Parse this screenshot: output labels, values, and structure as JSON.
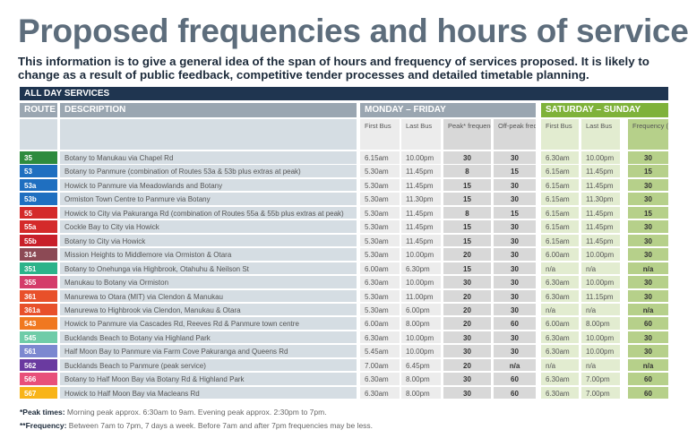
{
  "title": "Proposed frequencies and hours of service",
  "intro": "This information is to give a general idea of the span of hours and frequency of services proposed. It is likely to change as a result of public feedback, competitive tender processes and detailed timetable planning.",
  "section": "ALL DAY SERVICES",
  "headers": {
    "route": "ROUTE",
    "description": "DESCRIPTION",
    "weekday": "MONDAY – FRIDAY",
    "weekend": "SATURDAY – SUNDAY",
    "first_bus": "First Bus",
    "last_bus": "Last Bus",
    "peak": "Peak* frequency ** (minutes)",
    "offpeak": "Off-peak frequency (minutes)",
    "we_first": "First Bus",
    "we_last": "Last Bus",
    "we_freq": "Frequency (minutes)"
  },
  "colors": {
    "navy": "#1f3550",
    "grey_header": "#9aa6b1",
    "green_header": "#7fb23a"
  },
  "rows": [
    [
      "35",
      "Botany to Manukau via Chapel Rd",
      "6.15am",
      "10.00pm",
      "30",
      "30",
      "6.30am",
      "10.00pm",
      "30",
      "#2e8b3e"
    ],
    [
      "53",
      "Botany to Panmure (combination of Routes 53a & 53b plus extras at peak)",
      "5.30am",
      "11.45pm",
      "8",
      "15",
      "6.15am",
      "11.45pm",
      "15",
      "#1f6fc0"
    ],
    [
      "53a",
      "Howick to Panmure via Meadowlands and Botany",
      "5.30am",
      "11.45pm",
      "15",
      "30",
      "6.15am",
      "11.45pm",
      "30",
      "#1f6fc0"
    ],
    [
      "53b",
      "Ormiston Town Centre to Panmure via Botany",
      "5.30am",
      "11.30pm",
      "15",
      "30",
      "6.15am",
      "11.30pm",
      "30",
      "#1f6fc0"
    ],
    [
      "55",
      "Howick to City via Pakuranga Rd (combination of Routes 55a & 55b plus extras at peak)",
      "5.30am",
      "11.45pm",
      "8",
      "15",
      "6.15am",
      "11.45pm",
      "15",
      "#d42a2a"
    ],
    [
      "55a",
      "Cockle Bay to City via Howick",
      "5.30am",
      "11.45pm",
      "15",
      "30",
      "6.15am",
      "11.45pm",
      "30",
      "#d42a2a"
    ],
    [
      "55b",
      "Botany to City via Howick",
      "5.30am",
      "11.45pm",
      "15",
      "30",
      "6.15am",
      "11.45pm",
      "30",
      "#c8202a"
    ],
    [
      "314",
      "Mission Heights to Middlemore via Ormiston & Otara",
      "5.30am",
      "10.00pm",
      "20",
      "30",
      "6.00am",
      "10.00pm",
      "30",
      "#8c4a55"
    ],
    [
      "351",
      "Botany to Onehunga via Highbrook, Otahuhu & Neilson St",
      "6.00am",
      "6.30pm",
      "15",
      "30",
      "n/a",
      "n/a",
      "n/a",
      "#2bb38a"
    ],
    [
      "355",
      "Manukau to Botany via Ormiston",
      "6.30am",
      "10.00pm",
      "30",
      "30",
      "6.30am",
      "10.00pm",
      "30",
      "#d43c6a"
    ],
    [
      "361",
      "Manurewa to Otara (MIT) via Clendon & Manukau",
      "5.30am",
      "11.00pm",
      "20",
      "30",
      "6.30am",
      "11.15pm",
      "30",
      "#e8502a"
    ],
    [
      "361a",
      "Manurewa to Highbrook via Clendon, Manukau & Otara",
      "5.30am",
      "6.00pm",
      "20",
      "30",
      "n/a",
      "n/a",
      "n/a",
      "#e8502a"
    ],
    [
      "543",
      "Howick to Panmure via Cascades Rd, Reeves Rd & Panmure town centre",
      "6.00am",
      "8.00pm",
      "20",
      "60",
      "6.00am",
      "8.00pm",
      "60",
      "#f07820"
    ],
    [
      "545",
      "Bucklands Beach to Botany via Highland Park",
      "6.30am",
      "10.00pm",
      "30",
      "30",
      "6.30am",
      "10.00pm",
      "30",
      "#6fcca8"
    ],
    [
      "561",
      "Half Moon Bay to Panmure via Farm Cove Pakuranga and Queens Rd",
      "5.45am",
      "10.00pm",
      "30",
      "30",
      "6.30am",
      "10.00pm",
      "30",
      "#7c88d0"
    ],
    [
      "562",
      "Bucklands Beach to Panmure (peak service)",
      "7.00am",
      "6.45pm",
      "20",
      "n/a",
      "n/a",
      "n/a",
      "n/a",
      "#6a3aa0"
    ],
    [
      "566",
      "Botany to Half Moon Bay via Botany Rd & Highland Park",
      "6.30am",
      "8.00pm",
      "30",
      "60",
      "6.30am",
      "7.00pm",
      "60",
      "#e8507a"
    ],
    [
      "567",
      "Howick to Half Moon Bay via Macleans Rd",
      "6.30am",
      "8.00pm",
      "30",
      "60",
      "6.30am",
      "7.00pm",
      "60",
      "#f8b418"
    ]
  ],
  "footnotes": {
    "peak_label": "*Peak times:",
    "peak_text": " Morning peak approx. 6:30am to 9am. Evening peak approx. 2:30pm to 7pm.",
    "freq_label": "**Frequency:",
    "freq_text": " Between 7am to 7pm, 7 days a week. Before 7am and after 7pm frequencies may be less."
  }
}
